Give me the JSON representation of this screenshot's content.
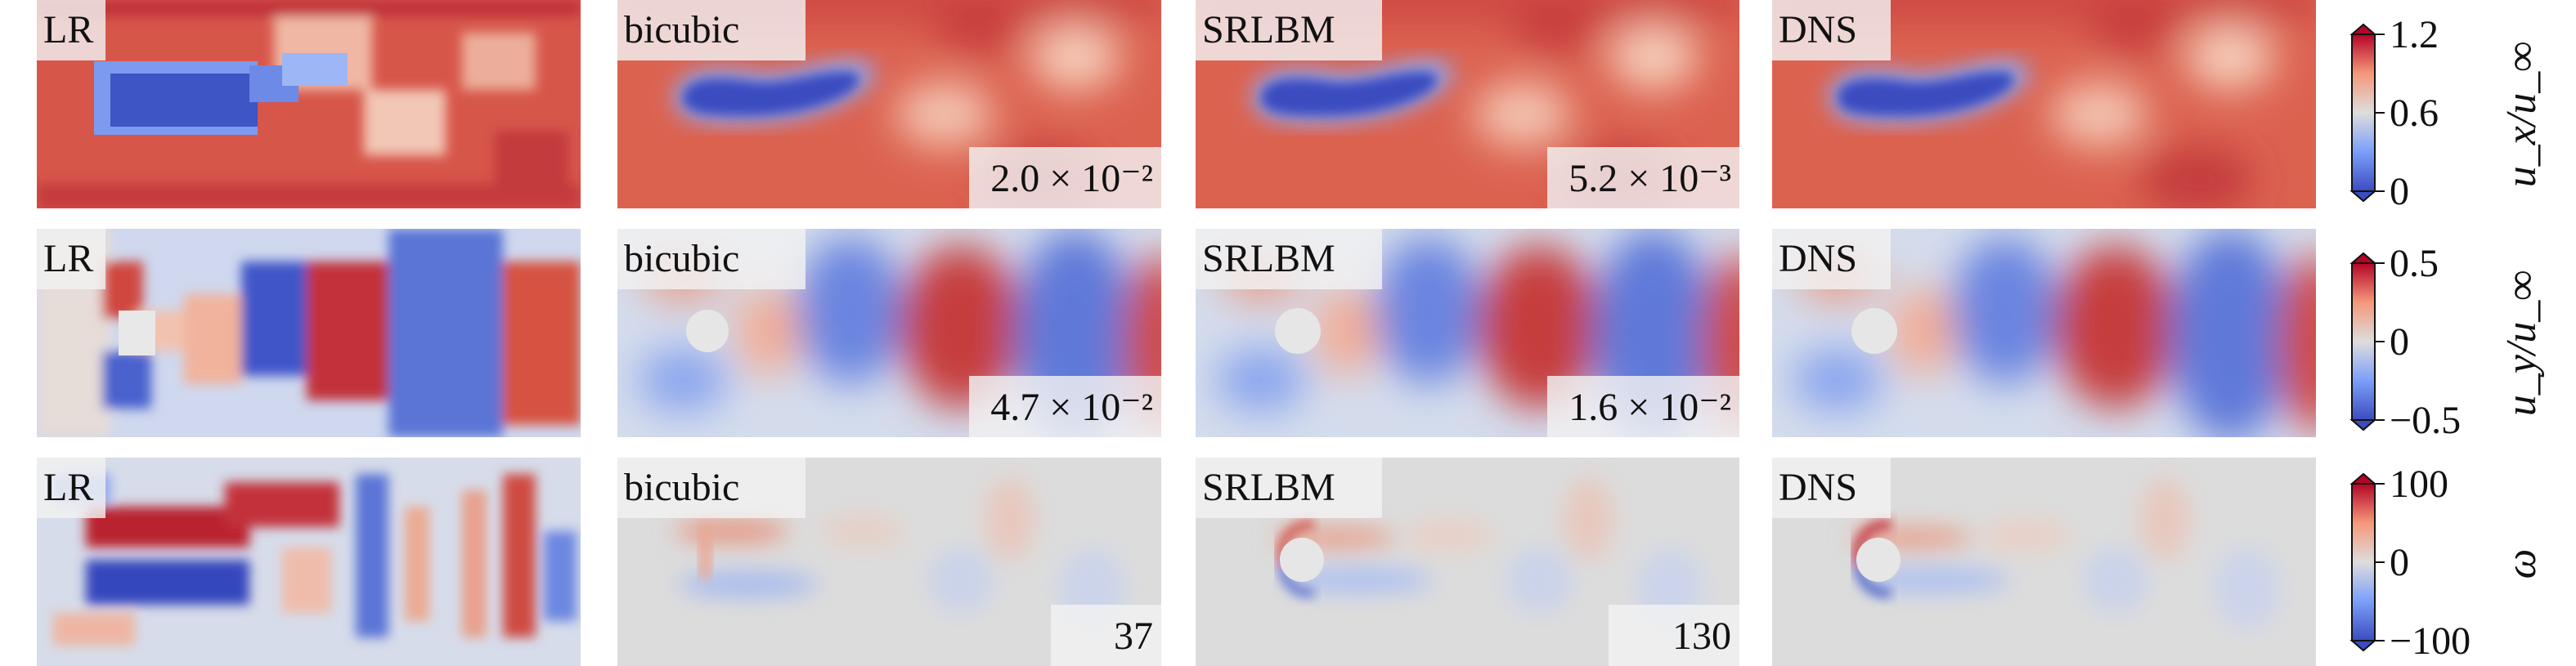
{
  "rows": [
    {
      "quantity": "u_x/u_inf",
      "panels": [
        {
          "method": "LR",
          "error": ""
        },
        {
          "method": "bicubic",
          "error": "2.0 × 10⁻²"
        },
        {
          "method": "SRLBM",
          "error": "5.2 × 10⁻³"
        },
        {
          "method": "DNS",
          "error": ""
        }
      ],
      "colorbar": {
        "label": "u_x/u_∞",
        "ticks": [
          "1.2",
          "0.6",
          "0"
        ],
        "range": [
          0,
          1.2
        ]
      }
    },
    {
      "quantity": "u_y/u_inf",
      "panels": [
        {
          "method": "LR",
          "error": ""
        },
        {
          "method": "bicubic",
          "error": "4.7 × 10⁻²"
        },
        {
          "method": "SRLBM",
          "error": "1.6 × 10⁻²"
        },
        {
          "method": "DNS",
          "error": ""
        }
      ],
      "colorbar": {
        "label": "u_y/u_∞",
        "ticks": [
          "0.5",
          "0",
          "−0.5"
        ],
        "range": [
          -0.5,
          0.5
        ]
      }
    },
    {
      "quantity": "omega",
      "panels": [
        {
          "method": "LR",
          "error": ""
        },
        {
          "method": "bicubic",
          "error": "37"
        },
        {
          "method": "SRLBM",
          "error": "130"
        },
        {
          "method": "DNS",
          "error": ""
        }
      ],
      "colorbar": {
        "label": "ω",
        "ticks": [
          "100",
          "0",
          "−100"
        ],
        "range": [
          -100,
          100
        ]
      }
    }
  ],
  "colors": {
    "low": "#3b4cc0",
    "mid": "#dddddd",
    "high": "#b40426"
  }
}
